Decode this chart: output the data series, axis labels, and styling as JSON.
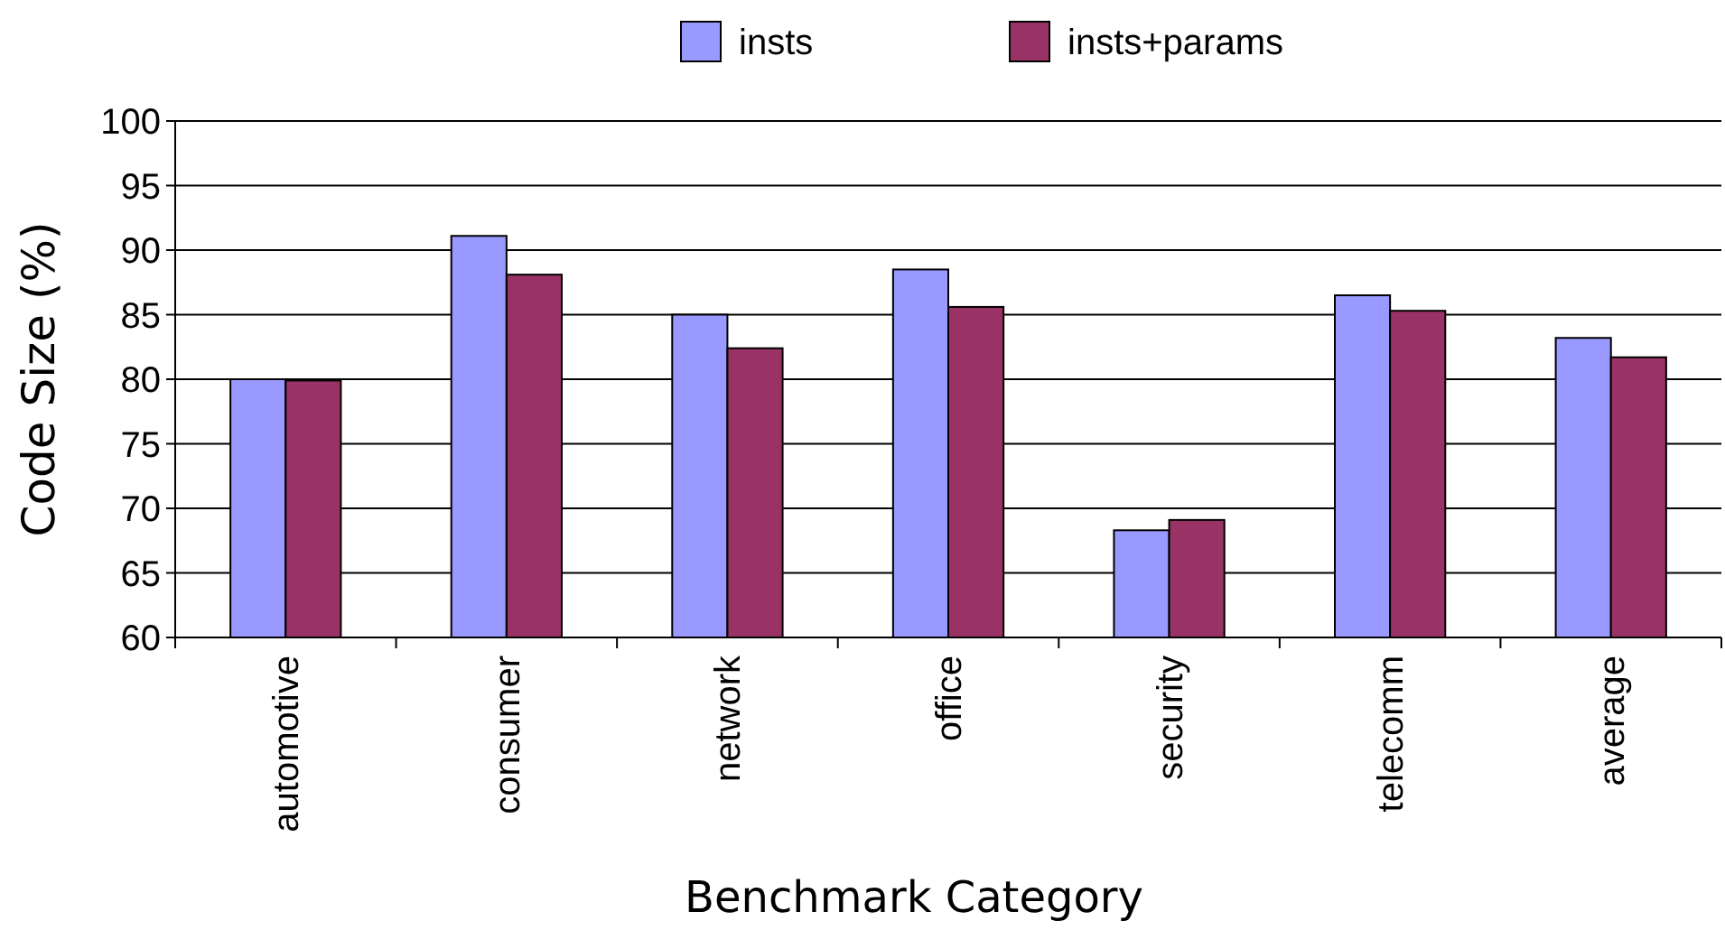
{
  "chart_data": {
    "type": "bar",
    "xlabel": "Benchmark Category",
    "ylabel": "Code Size (%)",
    "categories": [
      "automotive",
      "consumer",
      "network",
      "office",
      "security",
      "telecomm",
      "average"
    ],
    "series": [
      {
        "name": "insts",
        "color": "#9999ff",
        "values": [
          80.0,
          91.1,
          85.0,
          88.5,
          68.3,
          86.5,
          83.2
        ]
      },
      {
        "name": "insts+params",
        "color": "#993366",
        "values": [
          79.9,
          88.1,
          82.4,
          85.6,
          69.1,
          85.3,
          81.7
        ]
      }
    ],
    "ylim": [
      60,
      100
    ],
    "yticks": [
      60,
      65,
      70,
      75,
      80,
      85,
      90,
      95,
      100
    ],
    "grid": "y",
    "legend": "top"
  }
}
